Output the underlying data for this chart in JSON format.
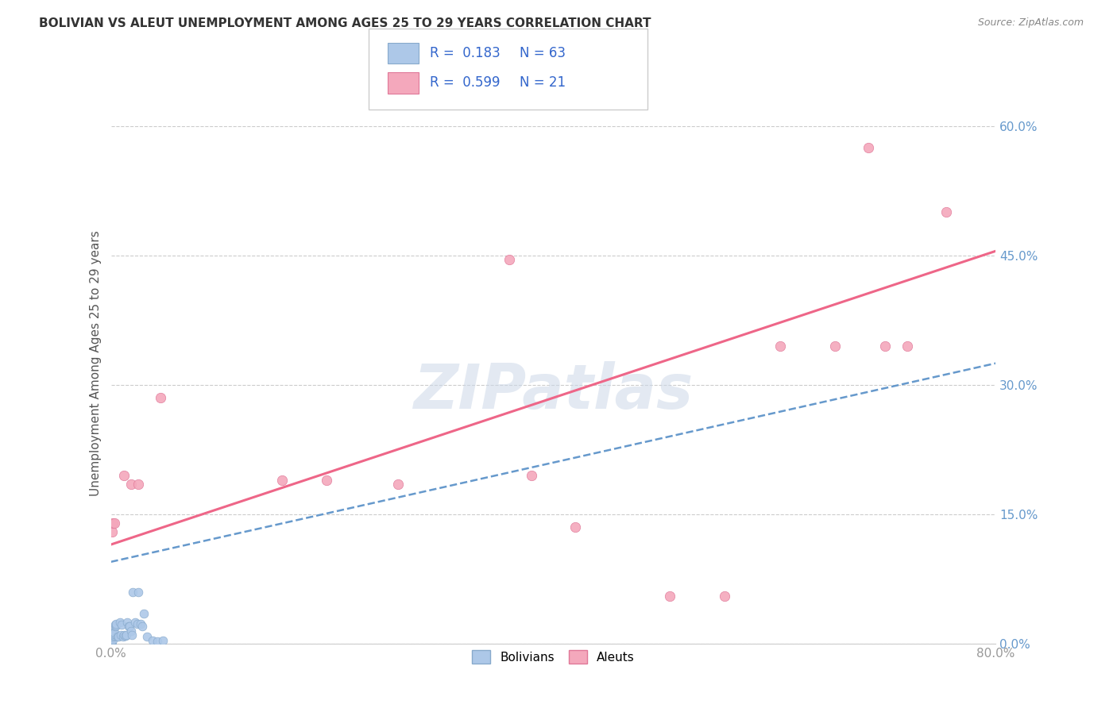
{
  "title": "BOLIVIAN VS ALEUT UNEMPLOYMENT AMONG AGES 25 TO 29 YEARS CORRELATION CHART",
  "source": "Source: ZipAtlas.com",
  "ylabel": "Unemployment Among Ages 25 to 29 years",
  "xlim": [
    0.0,
    0.8
  ],
  "ylim": [
    0.0,
    0.65
  ],
  "x_tick_positions": [
    0.0,
    0.8
  ],
  "x_tick_labels": [
    "0.0%",
    "80.0%"
  ],
  "y_ticks": [
    0.0,
    0.15,
    0.3,
    0.45,
    0.6
  ],
  "y_tick_labels": [
    "0.0%",
    "15.0%",
    "30.0%",
    "45.0%",
    "60.0%"
  ],
  "bolivian_color": "#adc8e8",
  "aleut_color": "#f4a8bc",
  "bolivian_edge": "#88aacc",
  "aleut_edge": "#e07898",
  "bolivian_R": 0.183,
  "bolivian_N": 63,
  "aleut_R": 0.599,
  "aleut_N": 21,
  "bolivian_line_color": "#6699cc",
  "aleut_line_color": "#ee6688",
  "legend_text_color": "#3366cc",
  "watermark": "ZIPatlas",
  "bolivian_x": [
    0.0,
    0.0,
    0.0,
    0.0,
    0.0,
    0.0,
    0.0,
    0.0,
    0.0,
    0.0,
    0.0,
    0.0,
    0.0,
    0.0,
    0.0,
    0.0,
    0.0,
    0.0,
    0.0,
    0.0,
    0.0,
    0.0,
    0.0,
    0.0,
    0.0,
    0.001,
    0.001,
    0.002,
    0.002,
    0.002,
    0.002,
    0.003,
    0.003,
    0.003,
    0.004,
    0.004,
    0.005,
    0.005,
    0.006,
    0.007,
    0.008,
    0.009,
    0.01,
    0.011,
    0.012,
    0.013,
    0.014,
    0.015,
    0.016,
    0.017,
    0.018,
    0.019,
    0.02,
    0.022,
    0.024,
    0.025,
    0.027,
    0.028,
    0.03,
    0.033,
    0.038,
    0.042,
    0.047
  ],
  "bolivian_y": [
    0.0,
    0.0,
    0.0,
    0.0,
    0.0,
    0.0,
    0.0,
    0.0,
    0.0,
    0.0,
    0.0,
    0.001,
    0.002,
    0.003,
    0.004,
    0.005,
    0.006,
    0.007,
    0.008,
    0.009,
    0.01,
    0.01,
    0.011,
    0.012,
    0.013,
    0.008,
    0.01,
    0.005,
    0.008,
    0.01,
    0.012,
    0.009,
    0.011,
    0.013,
    0.02,
    0.022,
    0.021,
    0.023,
    0.008,
    0.008,
    0.025,
    0.01,
    0.022,
    0.008,
    0.01,
    0.009,
    0.01,
    0.025,
    0.02,
    0.02,
    0.015,
    0.01,
    0.06,
    0.025,
    0.023,
    0.06,
    0.023,
    0.02,
    0.035,
    0.008,
    0.004,
    0.003,
    0.004
  ],
  "aleut_x": [
    0.001,
    0.002,
    0.003,
    0.012,
    0.018,
    0.025,
    0.045,
    0.155,
    0.195,
    0.26,
    0.36,
    0.38,
    0.42,
    0.505,
    0.555,
    0.605,
    0.655,
    0.685,
    0.7,
    0.72,
    0.755
  ],
  "aleut_y": [
    0.13,
    0.14,
    0.14,
    0.195,
    0.185,
    0.185,
    0.285,
    0.19,
    0.19,
    0.185,
    0.445,
    0.195,
    0.135,
    0.055,
    0.055,
    0.345,
    0.345,
    0.575,
    0.345,
    0.345,
    0.5
  ],
  "bolivian_trend_x": [
    0.0,
    0.8
  ],
  "bolivian_trend_y": [
    0.095,
    0.325
  ],
  "aleut_trend_x": [
    0.0,
    0.8
  ],
  "aleut_trend_y": [
    0.115,
    0.455
  ]
}
